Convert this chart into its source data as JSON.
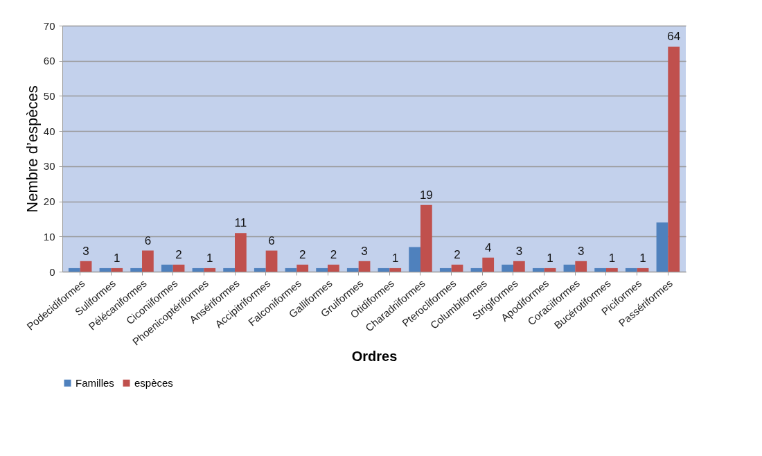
{
  "chart_data": {
    "type": "bar",
    "xlabel": "Ordres",
    "ylabel": "Nembre d’espèces",
    "categories": [
      "Podecidiformes",
      "Suliformes",
      "Pélécaniformes",
      "Ciconiiformes",
      "Phoenicoptériformes",
      "Ansériformes",
      "Accipitriformes",
      "Falconiformes",
      "Galliformes",
      "Gruiformes",
      "Otidiformes",
      "Charadriiformes",
      "Pterocliformes",
      "Columbiformes",
      "Strigiformes",
      "Apodiformes",
      "Coraciiformes",
      "Bucérotiformes",
      "Piciformes",
      "Passériformes"
    ],
    "series": [
      {
        "name": "Familles",
        "color": "#4f81bd",
        "values": [
          1,
          1,
          1,
          2,
          1,
          1,
          1,
          1,
          1,
          1,
          1,
          7,
          1,
          1,
          2,
          1,
          2,
          1,
          1,
          14
        ]
      },
      {
        "name": "espèces",
        "color": "#c0504d",
        "values": [
          3,
          1,
          6,
          2,
          1,
          11,
          6,
          2,
          2,
          3,
          1,
          19,
          2,
          4,
          3,
          1,
          3,
          1,
          1,
          64
        ],
        "value_labels": [
          "3",
          "1",
          "6",
          "2",
          "1",
          "11",
          "6",
          "2",
          "2",
          "3",
          "1",
          "19",
          "2",
          "4",
          "3",
          "1",
          "3",
          "1",
          "1",
          "64"
        ]
      }
    ],
    "ylim": [
      0,
      70
    ],
    "yticks": [
      0,
      10,
      20,
      30,
      40,
      50,
      60,
      70
    ],
    "grid": "y",
    "legend": "bottom"
  }
}
